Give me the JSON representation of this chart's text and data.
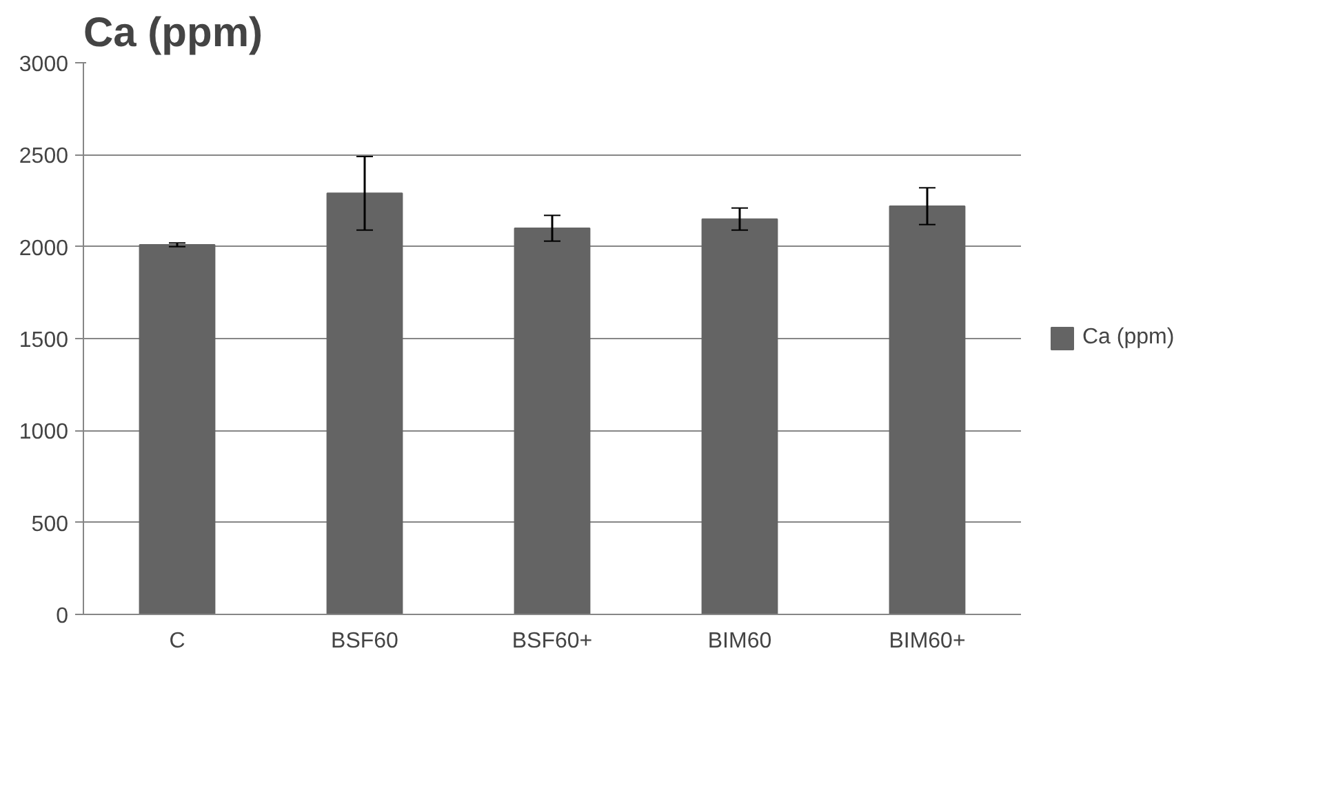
{
  "chart_data": {
    "type": "bar",
    "title": "Ca (ppm)",
    "categories": [
      "C",
      "BSF60",
      "BSF60+",
      "BIM60",
      "BIM60+"
    ],
    "series": [
      {
        "name": "Ca (ppm)",
        "color": "#646464",
        "values": [
          2010,
          2290,
          2100,
          2150,
          2220
        ],
        "errors": [
          10,
          200,
          70,
          60,
          100
        ]
      }
    ],
    "ylim": [
      0,
      3000
    ],
    "yticks": [
      0,
      500,
      1000,
      1500,
      2000,
      2500,
      3000
    ],
    "grid": "y",
    "legend": "right"
  }
}
